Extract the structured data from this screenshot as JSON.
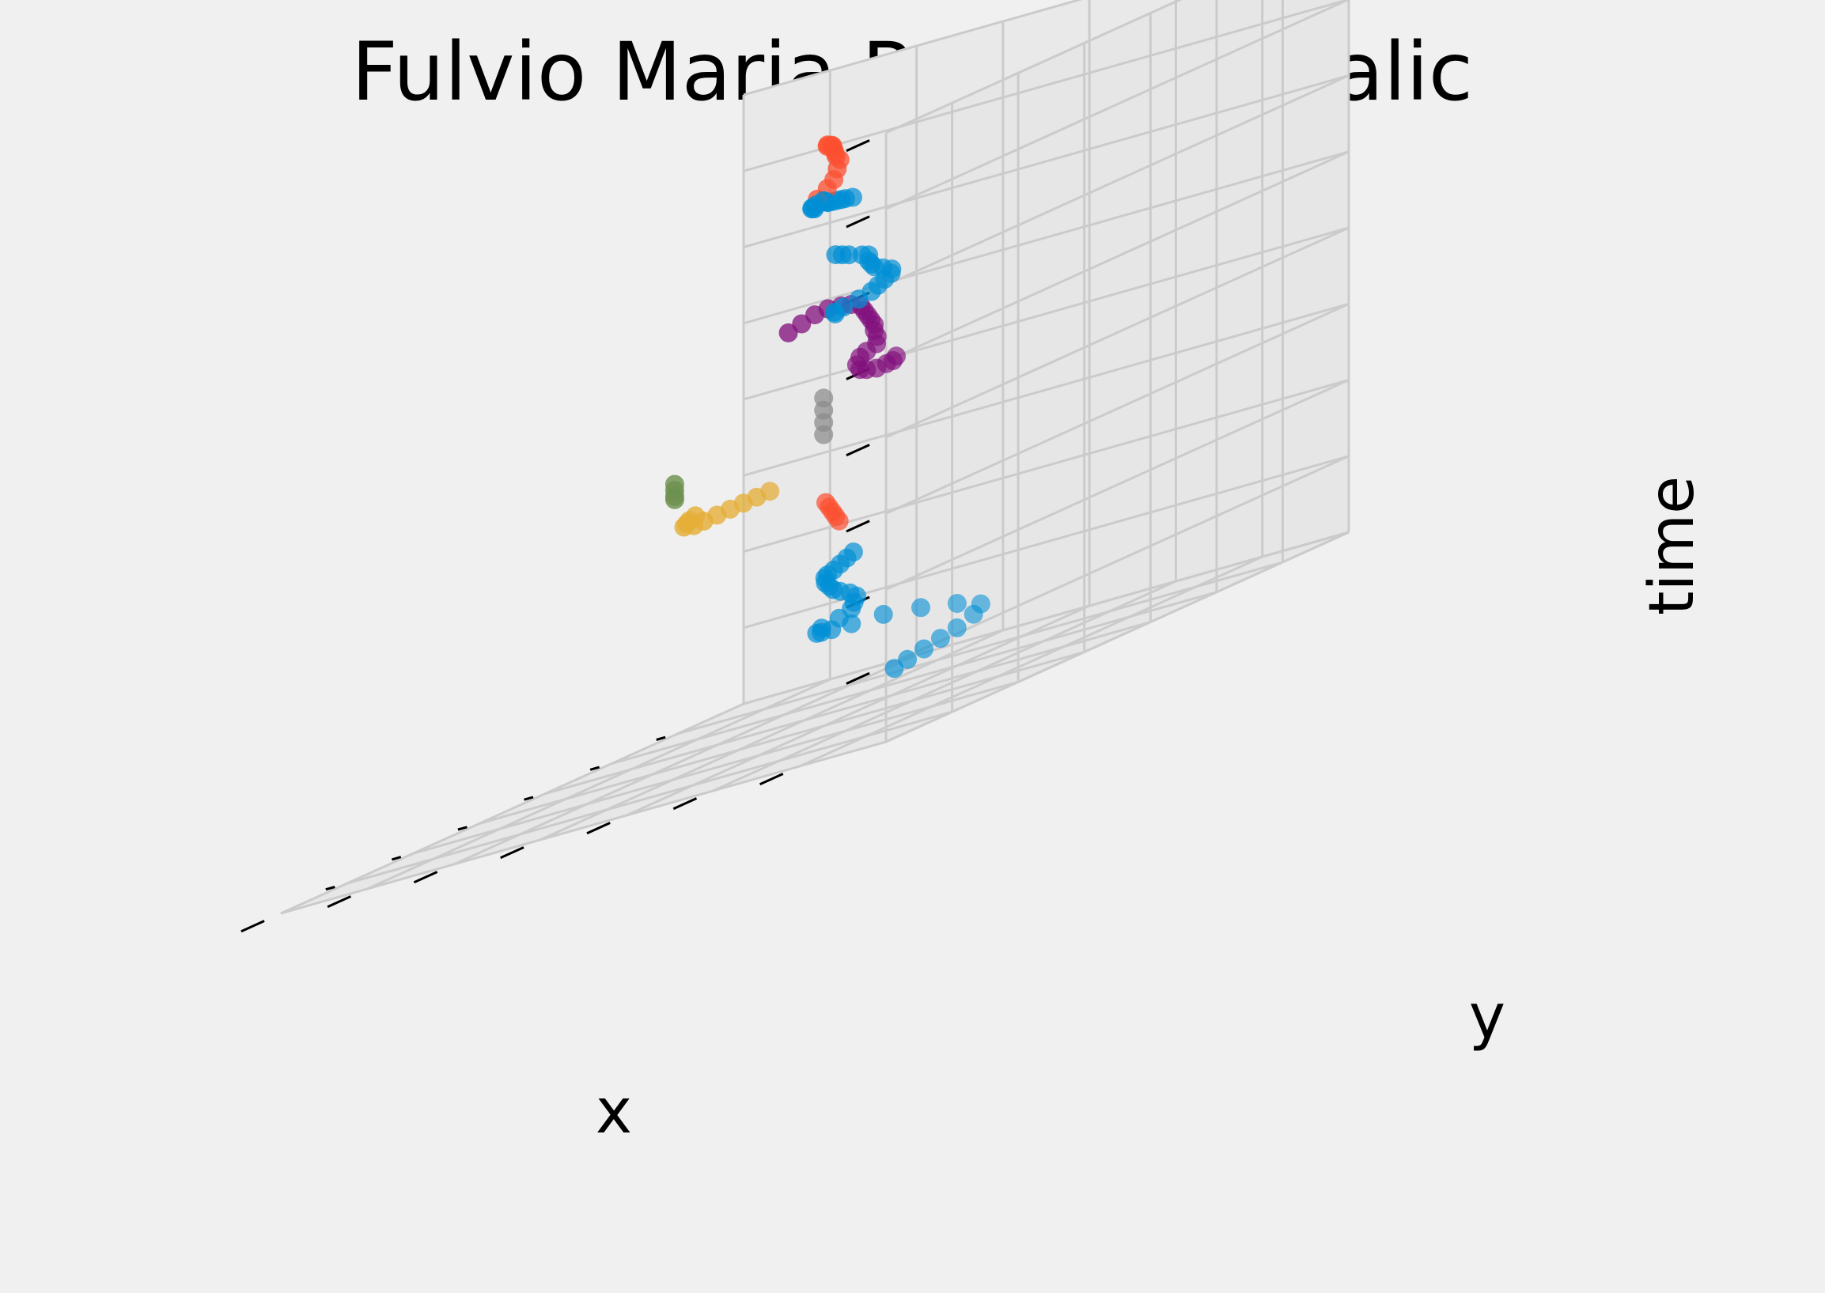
{
  "chart_data": {
    "type": "scatter",
    "title": "Fulvio Maria Rossi 25 - Italic",
    "xlabel": "x",
    "ylabel": "y",
    "zlabel": "time",
    "projection": "3d",
    "tick_labels": "hidden",
    "grid": true,
    "colors": {
      "background": "#f0f0f0",
      "grid": "#cbcbcb",
      "blue": "#008fd5",
      "red": "#fc4f30",
      "yellow": "#e5ae38",
      "gray": "#8b8b8b",
      "purple": "#810f7c",
      "green": "#6d904f"
    },
    "series": [
      {
        "color": "#6d904f",
        "points": [
          [
            0.3,
            0.05,
            0.42
          ],
          [
            0.3,
            0.05,
            0.41
          ],
          [
            0.3,
            0.05,
            0.4
          ],
          [
            0.3,
            0.05,
            0.395
          ]
        ]
      },
      {
        "color": "#008fd5",
        "points": [
          [
            0.24,
            0.38,
            0.01
          ],
          [
            0.2,
            0.38,
            0.015
          ],
          [
            0.15,
            0.38,
            0.02
          ],
          [
            0.1,
            0.38,
            0.025
          ],
          [
            0.05,
            0.38,
            0.03
          ],
          [
            0.0,
            0.38,
            0.04
          ],
          [
            -0.04,
            0.37,
            0.05
          ],
          [
            -0.06,
            0.32,
            0.06
          ],
          [
            -0.06,
            0.26,
            0.07
          ],
          [
            -0.02,
            0.22,
            0.08
          ],
          [
            0.04,
            0.2,
            0.085
          ],
          [
            0.1,
            0.2,
            0.09
          ],
          [
            0.15,
            0.21,
            0.095
          ],
          [
            0.2,
            0.23,
            0.1
          ],
          [
            0.24,
            0.26,
            0.11
          ],
          [
            0.26,
            0.3,
            0.12
          ],
          [
            0.26,
            0.32,
            0.13
          ],
          [
            0.27,
            0.33,
            0.14
          ],
          [
            0.28,
            0.34,
            0.15
          ],
          [
            0.3,
            0.34,
            0.16
          ],
          [
            0.33,
            0.34,
            0.17
          ],
          [
            0.37,
            0.35,
            0.18
          ],
          [
            0.4,
            0.36,
            0.19
          ],
          [
            0.43,
            0.37,
            0.2
          ],
          [
            0.45,
            0.38,
            0.21
          ],
          [
            0.46,
            0.39,
            0.215
          ],
          [
            0.46,
            0.4,
            0.22
          ],
          [
            0.44,
            0.4,
            0.225
          ],
          [
            0.42,
            0.4,
            0.23
          ],
          [
            0.4,
            0.4,
            0.235
          ]
        ]
      },
      {
        "color": "#fc4f30",
        "points": [
          [
            0.52,
            0.42,
            0.34
          ],
          [
            0.51,
            0.42,
            0.33
          ],
          [
            0.5,
            0.42,
            0.32
          ],
          [
            0.49,
            0.42,
            0.31
          ],
          [
            0.48,
            0.42,
            0.3
          ]
        ]
      },
      {
        "color": "#e5ae38",
        "points": [
          [
            0.36,
            0.24,
            0.37
          ],
          [
            0.4,
            0.24,
            0.37
          ],
          [
            0.44,
            0.24,
            0.37
          ],
          [
            0.48,
            0.24,
            0.37
          ],
          [
            0.52,
            0.24,
            0.37
          ],
          [
            0.56,
            0.24,
            0.37
          ],
          [
            0.59,
            0.24,
            0.37
          ],
          [
            0.62,
            0.24,
            0.375
          ],
          [
            0.63,
            0.25,
            0.38
          ],
          [
            0.64,
            0.26,
            0.385
          ],
          [
            0.64,
            0.27,
            0.39
          ]
        ]
      },
      {
        "color": "#8b8b8b",
        "points": [
          [
            0.6,
            0.46,
            0.46
          ],
          [
            0.6,
            0.46,
            0.48
          ],
          [
            0.6,
            0.46,
            0.5
          ],
          [
            0.6,
            0.46,
            0.52
          ]
        ]
      },
      {
        "color": "#810f7c",
        "points": [
          [
            0.78,
            0.5,
            0.66
          ],
          [
            0.74,
            0.5,
            0.665
          ],
          [
            0.7,
            0.5,
            0.67
          ],
          [
            0.66,
            0.5,
            0.67
          ],
          [
            0.62,
            0.5,
            0.665
          ],
          [
            0.59,
            0.5,
            0.66
          ],
          [
            0.56,
            0.5,
            0.65
          ],
          [
            0.55,
            0.5,
            0.64
          ],
          [
            0.54,
            0.5,
            0.63
          ],
          [
            0.53,
            0.5,
            0.62
          ],
          [
            0.52,
            0.5,
            0.61
          ],
          [
            0.52,
            0.5,
            0.6
          ],
          [
            0.53,
            0.51,
            0.59
          ],
          [
            0.55,
            0.52,
            0.58
          ],
          [
            0.58,
            0.52,
            0.575
          ],
          [
            0.6,
            0.52,
            0.57
          ],
          [
            0.61,
            0.52,
            0.56
          ],
          [
            0.6,
            0.52,
            0.55
          ],
          [
            0.58,
            0.52,
            0.545
          ],
          [
            0.55,
            0.52,
            0.54
          ],
          [
            0.52,
            0.52,
            0.54
          ],
          [
            0.5,
            0.52,
            0.54
          ],
          [
            0.49,
            0.52,
            0.545
          ]
        ]
      },
      {
        "color": "#008fd5",
        "points": [
          [
            0.82,
            0.6,
            0.77
          ],
          [
            0.8,
            0.6,
            0.765
          ],
          [
            0.78,
            0.6,
            0.76
          ],
          [
            0.74,
            0.6,
            0.75
          ],
          [
            0.72,
            0.6,
            0.745
          ],
          [
            0.72,
            0.6,
            0.735
          ],
          [
            0.73,
            0.61,
            0.73
          ],
          [
            0.74,
            0.62,
            0.725
          ],
          [
            0.75,
            0.64,
            0.72
          ],
          [
            0.76,
            0.66,
            0.715
          ],
          [
            0.78,
            0.67,
            0.71
          ],
          [
            0.8,
            0.67,
            0.705
          ],
          [
            0.82,
            0.67,
            0.7
          ],
          [
            0.84,
            0.67,
            0.695
          ],
          [
            0.86,
            0.66,
            0.69
          ],
          [
            0.87,
            0.64,
            0.685
          ],
          [
            0.86,
            0.62,
            0.68
          ],
          [
            0.84,
            0.61,
            0.675
          ]
        ]
      },
      {
        "color": "#008fd5",
        "points": [
          [
            0.86,
            0.65,
            0.86
          ],
          [
            0.9,
            0.66,
            0.865
          ],
          [
            0.95,
            0.68,
            0.87
          ],
          [
            1.0,
            0.7,
            0.875
          ],
          [
            1.05,
            0.72,
            0.88
          ],
          [
            1.1,
            0.74,
            0.885
          ],
          [
            1.14,
            0.76,
            0.89
          ],
          [
            1.18,
            0.78,
            0.895
          ],
          [
            1.22,
            0.8,
            0.9
          ],
          [
            1.26,
            0.82,
            0.905
          ],
          [
            1.3,
            0.83,
            0.905
          ],
          [
            1.33,
            0.84,
            0.905
          ],
          [
            1.35,
            0.85,
            0.905
          ],
          [
            1.36,
            0.86,
            0.905
          ]
        ]
      },
      {
        "color": "#fc4f30",
        "points": [
          [
            1.15,
            0.75,
            0.9
          ],
          [
            1.12,
            0.75,
            0.91
          ],
          [
            1.1,
            0.75,
            0.92
          ],
          [
            1.09,
            0.75,
            0.935
          ],
          [
            1.1,
            0.76,
            0.95
          ],
          [
            1.13,
            0.77,
            0.96
          ],
          [
            1.17,
            0.79,
            0.97
          ],
          [
            1.21,
            0.81,
            0.98
          ],
          [
            1.25,
            0.83,
            0.99
          ],
          [
            1.29,
            0.85,
            0.995
          ],
          [
            1.32,
            0.86,
            1.0
          ],
          [
            1.34,
            0.87,
            1.0
          ]
        ]
      }
    ]
  }
}
